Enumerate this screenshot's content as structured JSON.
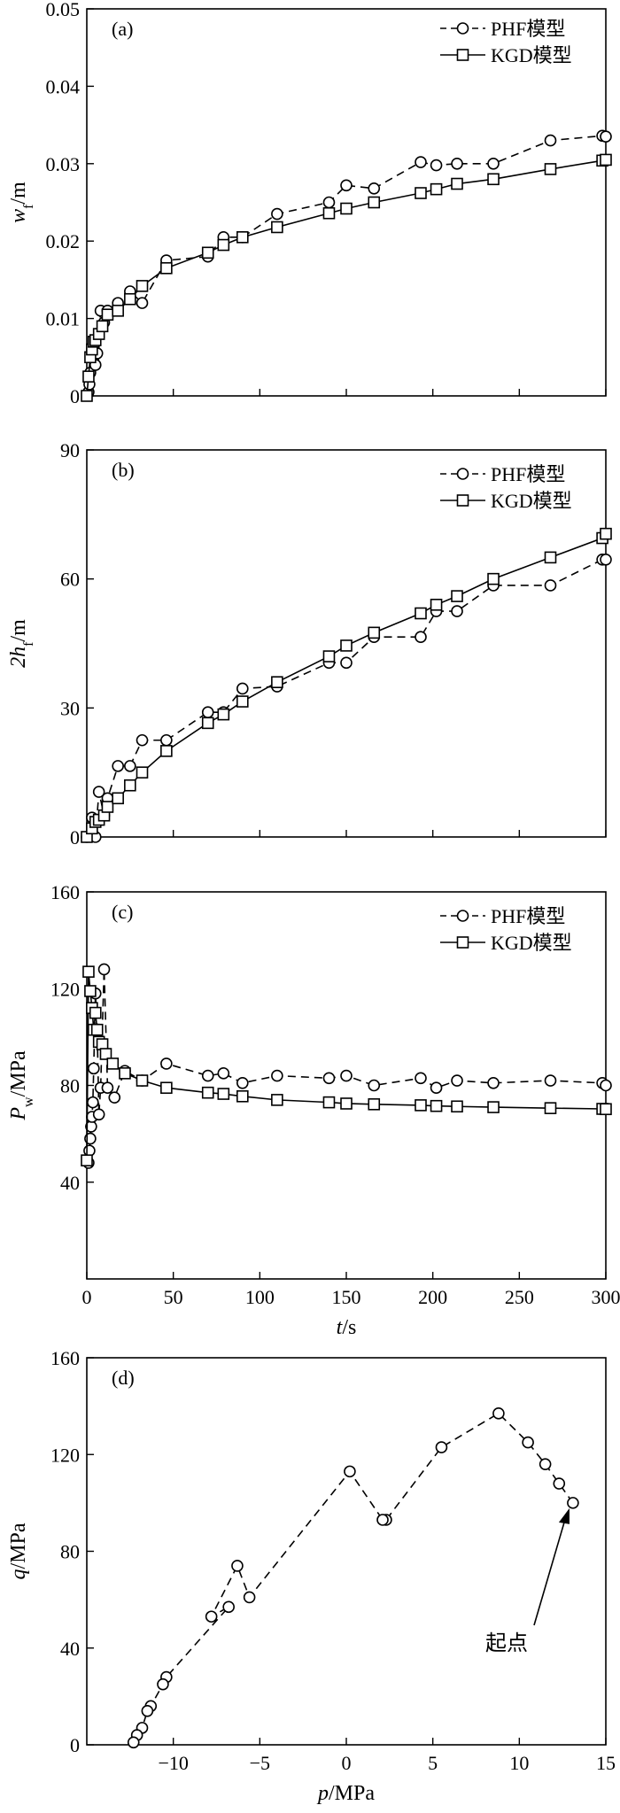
{
  "chart_data": [
    {
      "id": "a",
      "type": "line",
      "panel_label": "(a)",
      "ylabel": "w_f/m",
      "ylabel_main": "w",
      "ylabel_sub": "f",
      "ylabel_unit": "/m",
      "xlim": [
        0,
        300
      ],
      "ylim": [
        0,
        0.05
      ],
      "yticks": [
        0,
        0.01,
        0.02,
        0.03,
        0.04,
        0.05
      ],
      "ytick_labels": [
        "0",
        "0.01",
        "0.02",
        "0.03",
        "0.04",
        "0.05"
      ],
      "legend": {
        "position": "top-right",
        "entries": [
          "PHF模型",
          "KGD模型"
        ]
      },
      "series": [
        {
          "name": "PHF模型",
          "style": "dashed-circle",
          "x": [
            1,
            1.5,
            2,
            3,
            4,
            5,
            6,
            8,
            10,
            12,
            18,
            25,
            32,
            46,
            70,
            79,
            90,
            110,
            140,
            150,
            166,
            193,
            202,
            214,
            235,
            268,
            298,
            300
          ],
          "y": [
            0.0005,
            0.0015,
            0.003,
            0.006,
            0.005,
            0.004,
            0.0055,
            0.011,
            0.0095,
            0.011,
            0.012,
            0.0135,
            0.012,
            0.0175,
            0.018,
            0.0205,
            0.0205,
            0.0235,
            0.025,
            0.0272,
            0.0268,
            0.0302,
            0.0298,
            0.03,
            0.03,
            0.033,
            0.0336,
            0.0335
          ]
        },
        {
          "name": "KGD模型",
          "style": "solid-square",
          "x": [
            0,
            1,
            2,
            3,
            4,
            5,
            7,
            9,
            12,
            18,
            25,
            32,
            46,
            70,
            79,
            90,
            110,
            140,
            150,
            166,
            193,
            202,
            214,
            235,
            268,
            298,
            300
          ],
          "y": [
            0,
            0.0025,
            0.005,
            0.006,
            0.007,
            0.0072,
            0.008,
            0.009,
            0.0105,
            0.011,
            0.0125,
            0.0142,
            0.0165,
            0.0185,
            0.0195,
            0.0205,
            0.0218,
            0.0236,
            0.0242,
            0.025,
            0.0262,
            0.0267,
            0.0274,
            0.028,
            0.0293,
            0.0304,
            0.0305
          ]
        }
      ]
    },
    {
      "id": "b",
      "type": "line",
      "panel_label": "(b)",
      "ylabel": "2h_f/m",
      "ylabel_main": "2h",
      "ylabel_sub": "f",
      "ylabel_unit": "/m",
      "xlim": [
        0,
        300
      ],
      "ylim": [
        0,
        90
      ],
      "yticks": [
        0,
        30,
        60,
        90
      ],
      "ytick_labels": [
        "0",
        "30",
        "60",
        "90"
      ],
      "legend": {
        "position": "top-right",
        "entries": [
          "PHF模型",
          "KGD模型"
        ]
      },
      "series": [
        {
          "name": "PHF模型",
          "style": "dashed-circle",
          "x": [
            0,
            3,
            5,
            7,
            10,
            12,
            18,
            25,
            32,
            46,
            70,
            79,
            90,
            110,
            140,
            150,
            166,
            193,
            202,
            214,
            235,
            268,
            298,
            300
          ],
          "y": [
            0,
            4.5,
            0,
            10.5,
            5,
            9,
            16.5,
            16.5,
            22.5,
            22.5,
            29,
            29,
            34.5,
            35,
            40.5,
            40.5,
            46.5,
            46.5,
            52.5,
            52.5,
            58.5,
            58.5,
            64.5,
            64.5
          ]
        },
        {
          "name": "KGD模型",
          "style": "solid-square",
          "x": [
            0,
            3,
            5,
            7,
            10,
            12,
            18,
            25,
            32,
            46,
            70,
            79,
            90,
            110,
            140,
            150,
            166,
            193,
            202,
            214,
            235,
            268,
            298,
            300
          ],
          "y": [
            0,
            2,
            3.5,
            4,
            5,
            7,
            9,
            12,
            15,
            20,
            26.5,
            28.5,
            31.5,
            36,
            42,
            44.5,
            47.5,
            52,
            54,
            56,
            60,
            65,
            69.5,
            70.5
          ]
        }
      ]
    },
    {
      "id": "c",
      "type": "line",
      "panel_label": "(c)",
      "ylabel": "P_w/MPa",
      "ylabel_main": "P",
      "ylabel_sub": "w",
      "ylabel_unit": "/MPa",
      "xlabel": "t/s",
      "xlim": [
        0,
        300
      ],
      "ylim": [
        0,
        160
      ],
      "yticks": [
        40,
        80,
        120,
        160
      ],
      "ytick_labels": [
        "40",
        "80",
        "120",
        "160"
      ],
      "xticks": [
        0,
        50,
        100,
        150,
        200,
        250,
        300
      ],
      "xtick_labels": [
        "0",
        "50",
        "100",
        "150",
        "200",
        "250",
        "300"
      ],
      "legend": {
        "position": "top-right",
        "entries": [
          "PHF模型",
          "KGD模型"
        ]
      },
      "series": [
        {
          "name": "PHF模型",
          "style": "dashed-circle",
          "x": [
            1,
            1.5,
            2,
            2.5,
            3,
            3.5,
            4,
            4.5,
            5,
            6,
            7,
            8,
            10,
            12,
            16,
            22,
            32,
            46,
            70,
            79,
            90,
            110,
            140,
            150,
            166,
            193,
            202,
            214,
            235,
            268,
            298,
            300
          ],
          "y": [
            48,
            53,
            58,
            63,
            67,
            73,
            87,
            103,
            118,
            103,
            68,
            79,
            128,
            79,
            75,
            86,
            82,
            89,
            84,
            85,
            81,
            84,
            83,
            84,
            80,
            83,
            79,
            82,
            81,
            82,
            81,
            80
          ]
        },
        {
          "name": "KGD模型",
          "style": "solid-square",
          "x": [
            0,
            1,
            2,
            3,
            4,
            5,
            6,
            7,
            9,
            11,
            15,
            22,
            32,
            46,
            70,
            79,
            90,
            110,
            140,
            150,
            166,
            193,
            202,
            214,
            235,
            268,
            298,
            300
          ],
          "y": [
            49,
            127,
            119,
            112,
            103,
            110,
            103,
            98,
            97,
            93,
            89,
            85,
            82,
            79,
            77,
            76.5,
            75.5,
            74,
            73,
            72.5,
            72.2,
            71.8,
            71.5,
            71.3,
            71,
            70.6,
            70.3,
            70.2
          ]
        }
      ]
    },
    {
      "id": "d",
      "type": "line",
      "panel_label": "(d)",
      "ylabel": "q/MPa",
      "ylabel_main": "q",
      "ylabel_unit": "/MPa",
      "xlabel": "p/MPa",
      "xlabel_main": "p",
      "xlabel_unit": "/MPa",
      "xlim": [
        -15,
        15
      ],
      "ylim": [
        0,
        160
      ],
      "yticks": [
        0,
        40,
        80,
        120,
        160
      ],
      "ytick_labels": [
        "0",
        "40",
        "80",
        "120",
        "160"
      ],
      "xticks": [
        -10,
        -5,
        0,
        5,
        10,
        15
      ],
      "xtick_labels": [
        "−10",
        "−5",
        "0",
        "5",
        "10",
        "15"
      ],
      "annotation": {
        "text": "起点",
        "x": 13,
        "y": 100
      },
      "series": [
        {
          "name": "",
          "style": "dashed-circle",
          "x": [
            13.1,
            12.3,
            11.5,
            10.5,
            8.8,
            5.5,
            2.3,
            2.1,
            0.2,
            -5.6,
            -6.3,
            -7.8,
            -6.8,
            -10.4,
            -10.6,
            -11.3,
            -11.5,
            -11.8,
            -12.1,
            -12.3
          ],
          "y": [
            100,
            108,
            116,
            125,
            137,
            123,
            93,
            93,
            113,
            61,
            74,
            53,
            57,
            28,
            25,
            16,
            14,
            7,
            4,
            1
          ]
        }
      ]
    }
  ],
  "shared": {
    "xlabel_main": "t",
    "xlabel_unit": "/s"
  }
}
